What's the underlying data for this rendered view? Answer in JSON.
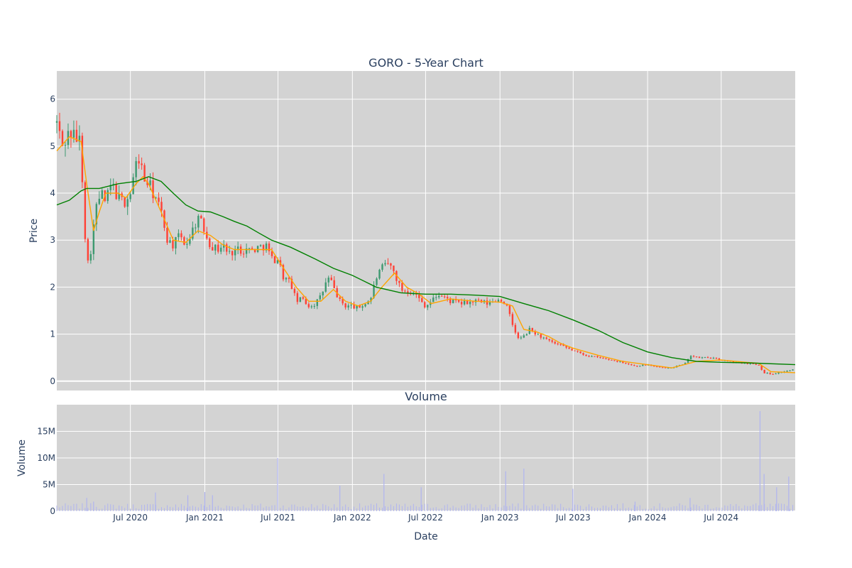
{
  "chart_data": [
    {
      "type": "candlestick",
      "title": "GORO - 5-Year Chart",
      "ylabel": "Price",
      "ylim": [
        -0.2,
        6.6
      ],
      "yticks": [
        0,
        1,
        2,
        3,
        4,
        5,
        6
      ],
      "grid": true,
      "colors": {
        "up": "#3d9970",
        "down": "#ff4136",
        "ma_short": "#ffa500",
        "ma_long": "#008000",
        "plot_bg": "#d3d3d3"
      },
      "date_range": [
        "2020-01-01",
        "2024-12-31"
      ],
      "price_path": [
        [
          "2020-01-01",
          5.5
        ],
        [
          "2020-01-15",
          5.0
        ],
        [
          "2020-02-01",
          5.3
        ],
        [
          "2020-02-15",
          5.2
        ],
        [
          "2020-03-01",
          5.1
        ],
        [
          "2020-03-05",
          4.1
        ],
        [
          "2020-03-10",
          3.3
        ],
        [
          "2020-03-15",
          2.4
        ],
        [
          "2020-03-25",
          2.8
        ],
        [
          "2020-04-01",
          3.3
        ],
        [
          "2020-04-10",
          3.8
        ],
        [
          "2020-04-20",
          4.0
        ],
        [
          "2020-05-01",
          3.8
        ],
        [
          "2020-05-15",
          4.2
        ],
        [
          "2020-06-01",
          3.9
        ],
        [
          "2020-06-15",
          3.8
        ],
        [
          "2020-07-01",
          4.0
        ],
        [
          "2020-07-15",
          4.6
        ],
        [
          "2020-07-25",
          4.8
        ],
        [
          "2020-08-01",
          4.3
        ],
        [
          "2020-08-15",
          4.2
        ],
        [
          "2020-09-01",
          3.9
        ],
        [
          "2020-09-15",
          3.6
        ],
        [
          "2020-10-01",
          3.0
        ],
        [
          "2020-10-15",
          2.9
        ],
        [
          "2020-11-01",
          3.1
        ],
        [
          "2020-11-15",
          2.9
        ],
        [
          "2020-12-01",
          3.2
        ],
        [
          "2020-12-15",
          3.5
        ],
        [
          "2021-01-01",
          3.2
        ],
        [
          "2021-01-15",
          2.9
        ],
        [
          "2021-02-01",
          2.8
        ],
        [
          "2021-02-15",
          2.9
        ],
        [
          "2021-03-01",
          2.7
        ],
        [
          "2021-03-15",
          2.8
        ],
        [
          "2021-04-01",
          2.8
        ],
        [
          "2021-05-01",
          2.8
        ],
        [
          "2021-06-01",
          2.9
        ],
        [
          "2021-06-15",
          2.6
        ],
        [
          "2021-07-01",
          2.6
        ],
        [
          "2021-07-15",
          2.2
        ],
        [
          "2021-08-01",
          2.1
        ],
        [
          "2021-08-15",
          1.7
        ],
        [
          "2021-09-01",
          1.75
        ],
        [
          "2021-09-15",
          1.6
        ],
        [
          "2021-10-01",
          1.65
        ],
        [
          "2021-10-15",
          1.8
        ],
        [
          "2021-11-01",
          2.2
        ],
        [
          "2021-11-10",
          2.1
        ],
        [
          "2021-11-20",
          1.9
        ],
        [
          "2021-12-01",
          1.7
        ],
        [
          "2021-12-15",
          1.6
        ],
        [
          "2022-01-01",
          1.6
        ],
        [
          "2022-01-15",
          1.55
        ],
        [
          "2022-02-01",
          1.65
        ],
        [
          "2022-02-15",
          1.75
        ],
        [
          "2022-03-01",
          2.2
        ],
        [
          "2022-03-15",
          2.4
        ],
        [
          "2022-04-01",
          2.5
        ],
        [
          "2022-04-15",
          2.3
        ],
        [
          "2022-05-01",
          1.95
        ],
        [
          "2022-06-01",
          1.9
        ],
        [
          "2022-06-15",
          1.75
        ],
        [
          "2022-07-01",
          1.6
        ],
        [
          "2022-07-15",
          1.7
        ],
        [
          "2022-08-01",
          1.85
        ],
        [
          "2022-09-01",
          1.7
        ],
        [
          "2022-10-01",
          1.65
        ],
        [
          "2022-11-01",
          1.7
        ],
        [
          "2022-12-01",
          1.65
        ],
        [
          "2023-01-01",
          1.75
        ],
        [
          "2023-01-15",
          1.65
        ],
        [
          "2023-02-01",
          1.2
        ],
        [
          "2023-02-15",
          0.9
        ],
        [
          "2023-03-01",
          0.95
        ],
        [
          "2023-03-15",
          1.1
        ],
        [
          "2023-04-01",
          1.0
        ],
        [
          "2023-05-01",
          0.85
        ],
        [
          "2023-06-01",
          0.75
        ],
        [
          "2023-07-01",
          0.65
        ],
        [
          "2023-08-01",
          0.55
        ],
        [
          "2023-09-01",
          0.5
        ],
        [
          "2023-10-01",
          0.45
        ],
        [
          "2023-11-01",
          0.4
        ],
        [
          "2023-12-01",
          0.32
        ],
        [
          "2024-01-01",
          0.35
        ],
        [
          "2024-02-01",
          0.28
        ],
        [
          "2024-03-01",
          0.3
        ],
        [
          "2024-04-01",
          0.35
        ],
        [
          "2024-04-15",
          0.55
        ],
        [
          "2024-05-01",
          0.5
        ],
        [
          "2024-06-01",
          0.5
        ],
        [
          "2024-07-01",
          0.45
        ],
        [
          "2024-08-01",
          0.4
        ],
        [
          "2024-09-01",
          0.38
        ],
        [
          "2024-10-01",
          0.35
        ],
        [
          "2024-10-15",
          0.18
        ],
        [
          "2024-11-01",
          0.15
        ],
        [
          "2024-12-01",
          0.2
        ],
        [
          "2024-12-31",
          0.25
        ]
      ],
      "series": [
        {
          "values": [
            [
              "2020-01-01",
              4.9
            ],
            [
              "2020-02-01",
              5.2
            ],
            [
              "2020-03-01",
              5.1
            ],
            [
              "2020-03-15",
              4.2
            ],
            [
              "2020-04-01",
              3.2
            ],
            [
              "2020-04-15",
              3.6
            ],
            [
              "2020-05-01",
              4.0
            ],
            [
              "2020-06-01",
              4.0
            ],
            [
              "2020-06-20",
              3.9
            ],
            [
              "2020-07-15",
              4.2
            ],
            [
              "2020-08-01",
              4.35
            ],
            [
              "2020-08-15",
              4.2
            ],
            [
              "2020-09-15",
              3.6
            ],
            [
              "2020-10-15",
              3.0
            ],
            [
              "2020-11-15",
              2.95
            ],
            [
              "2020-12-15",
              3.2
            ],
            [
              "2021-01-15",
              3.1
            ],
            [
              "2021-02-15",
              2.9
            ],
            [
              "2021-03-15",
              2.8
            ],
            [
              "2021-05-01",
              2.8
            ],
            [
              "2021-06-15",
              2.8
            ],
            [
              "2021-07-15",
              2.4
            ],
            [
              "2021-08-15",
              2.0
            ],
            [
              "2021-09-15",
              1.7
            ],
            [
              "2021-10-15",
              1.7
            ],
            [
              "2021-11-15",
              1.95
            ],
            [
              "2021-12-15",
              1.7
            ],
            [
              "2022-01-15",
              1.6
            ],
            [
              "2022-02-15",
              1.7
            ],
            [
              "2022-03-15",
              2.0
            ],
            [
              "2022-04-15",
              2.3
            ],
            [
              "2022-05-15",
              2.0
            ],
            [
              "2022-06-15",
              1.85
            ],
            [
              "2022-07-15",
              1.65
            ],
            [
              "2022-09-01",
              1.75
            ],
            [
              "2022-11-01",
              1.7
            ],
            [
              "2023-01-01",
              1.68
            ],
            [
              "2023-02-01",
              1.6
            ],
            [
              "2023-03-01",
              1.1
            ],
            [
              "2023-04-01",
              1.05
            ],
            [
              "2023-05-01",
              0.95
            ],
            [
              "2023-06-01",
              0.8
            ],
            [
              "2023-07-01",
              0.7
            ],
            [
              "2023-09-01",
              0.55
            ],
            [
              "2023-11-01",
              0.42
            ],
            [
              "2024-01-01",
              0.35
            ],
            [
              "2024-03-01",
              0.28
            ],
            [
              "2024-05-01",
              0.42
            ],
            [
              "2024-07-01",
              0.45
            ],
            [
              "2024-09-01",
              0.4
            ],
            [
              "2024-10-01",
              0.38
            ],
            [
              "2024-11-01",
              0.2
            ],
            [
              "2024-12-31",
              0.18
            ]
          ]
        },
        {
          "values": [
            [
              "2020-01-01",
              3.75
            ],
            [
              "2020-02-01",
              3.85
            ],
            [
              "2020-03-01",
              4.05
            ],
            [
              "2020-03-15",
              4.1
            ],
            [
              "2020-04-15",
              4.1
            ],
            [
              "2020-06-01",
              4.2
            ],
            [
              "2020-07-15",
              4.25
            ],
            [
              "2020-08-15",
              4.35
            ],
            [
              "2020-09-15",
              4.25
            ],
            [
              "2020-10-15",
              4.0
            ],
            [
              "2020-11-15",
              3.75
            ],
            [
              "2020-12-15",
              3.62
            ],
            [
              "2021-01-15",
              3.6
            ],
            [
              "2021-02-15",
              3.5
            ],
            [
              "2021-03-15",
              3.4
            ],
            [
              "2021-04-15",
              3.3
            ],
            [
              "2021-05-15",
              3.15
            ],
            [
              "2021-06-15",
              3.0
            ],
            [
              "2021-08-01",
              2.85
            ],
            [
              "2021-10-01",
              2.6
            ],
            [
              "2021-11-15",
              2.4
            ],
            [
              "2022-01-01",
              2.25
            ],
            [
              "2022-03-01",
              2.0
            ],
            [
              "2022-05-01",
              1.88
            ],
            [
              "2022-07-01",
              1.85
            ],
            [
              "2022-09-01",
              1.85
            ],
            [
              "2022-11-01",
              1.83
            ],
            [
              "2023-01-01",
              1.8
            ],
            [
              "2023-03-01",
              1.65
            ],
            [
              "2023-05-01",
              1.5
            ],
            [
              "2023-07-01",
              1.3
            ],
            [
              "2023-09-01",
              1.08
            ],
            [
              "2023-11-01",
              0.82
            ],
            [
              "2024-01-01",
              0.62
            ],
            [
              "2024-03-01",
              0.5
            ],
            [
              "2024-05-01",
              0.42
            ],
            [
              "2024-07-01",
              0.4
            ],
            [
              "2024-09-01",
              0.39
            ],
            [
              "2024-12-31",
              0.35
            ]
          ]
        }
      ]
    },
    {
      "type": "bar",
      "title": "Volume",
      "ylabel": "Volume",
      "xlabel": "Date",
      "ylim": [
        0,
        20000000
      ],
      "yticks": [
        0,
        5000000,
        10000000,
        15000000
      ],
      "ytick_labels": [
        "0",
        "5M",
        "10M",
        "15M"
      ],
      "xticks": [
        "2020-07-01",
        "2021-01-01",
        "2021-07-01",
        "2022-01-01",
        "2022-07-01",
        "2023-01-01",
        "2023-07-01",
        "2024-01-01",
        "2024-07-01"
      ],
      "xtick_labels": [
        "Jul 2020",
        "Jan 2021",
        "Jul 2021",
        "Jan 2022",
        "Jul 2022",
        "Jan 2023",
        "Jul 2023",
        "Jan 2024",
        "Jul 2024"
      ],
      "bar_color": "#b0b4f0",
      "baseline": 1000000,
      "spikes": [
        [
          "2020-03-15",
          2500000
        ],
        [
          "2020-04-01",
          1800000
        ],
        [
          "2020-09-01",
          3500000
        ],
        [
          "2020-11-20",
          3000000
        ],
        [
          "2021-01-01",
          3600000
        ],
        [
          "2021-01-20",
          3000000
        ],
        [
          "2021-06-30",
          10000000
        ],
        [
          "2021-12-01",
          4800000
        ],
        [
          "2022-03-20",
          7000000
        ],
        [
          "2022-06-20",
          4500000
        ],
        [
          "2023-01-15",
          7500000
        ],
        [
          "2023-03-01",
          8000000
        ],
        [
          "2023-06-30",
          4200000
        ],
        [
          "2023-12-01",
          1800000
        ],
        [
          "2024-04-15",
          2500000
        ],
        [
          "2024-10-05",
          18800000
        ],
        [
          "2024-10-15",
          7000000
        ],
        [
          "2024-11-15",
          4500000
        ],
        [
          "2024-12-15",
          6500000
        ]
      ]
    }
  ]
}
